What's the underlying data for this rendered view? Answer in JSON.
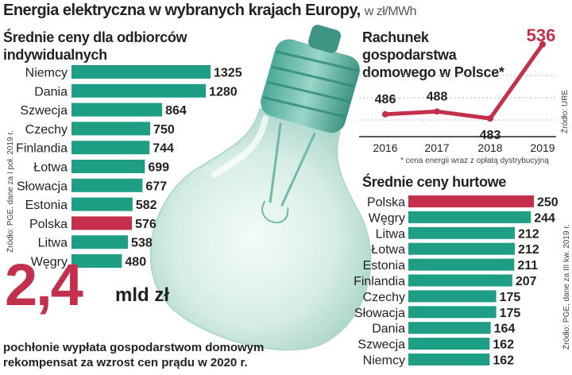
{
  "header": {
    "title": "Energia elektryczna w wybranych krajach Europy,",
    "unit": "w zł/MWh"
  },
  "colors": {
    "teal": "#1f9e86",
    "red": "#c4304b",
    "grid": "#bbbbbb"
  },
  "source_left": "Źródło: PGE, dane za I poł. 2019 r.",
  "source_line": "Źródło: URE",
  "source_right": "Źródło: PGE, dane za III kw. 2019 r.",
  "callout": {
    "number": "2,4",
    "unit": "mld zł",
    "text": "pochłonie wypłata gospodarstwom domowym rekompensat za wzrost cen prądu w 2020 r."
  },
  "chart_data": [
    {
      "type": "bar",
      "orientation": "horizontal",
      "title": "Średnie ceny dla odbiorców indywidualnych",
      "categories": [
        "Niemcy",
        "Dania",
        "Szwecja",
        "Czechy",
        "Finlandia",
        "Łotwa",
        "Słowacja",
        "Estonia",
        "Polska",
        "Litwa",
        "Węgry"
      ],
      "values": [
        1325,
        1280,
        864,
        750,
        744,
        699,
        677,
        582,
        576,
        538,
        480
      ],
      "labels": [
        "1325",
        "1280",
        "864",
        "750",
        "744",
        "699",
        "677",
        "582",
        "576",
        "538",
        "480"
      ],
      "highlight": "Polska"
    },
    {
      "type": "line",
      "title": "Rachunek gospodarstwa domowego w Polsce*",
      "x": [
        "2016",
        "2017",
        "2018",
        "2019"
      ],
      "values": [
        486,
        488,
        483,
        536
      ],
      "labels": [
        "486",
        "488",
        "483",
        "536"
      ],
      "footnote": "* cena energii wraz z opłatą dystrybucyjną"
    },
    {
      "type": "bar",
      "orientation": "horizontal",
      "title": "Średnie ceny hurtowe",
      "categories": [
        "Polska",
        "Węgry",
        "Litwa",
        "Łotwa",
        "Estonia",
        "Finlandia",
        "Czechy",
        "Słowacja",
        "Dania",
        "Szwecja",
        "Niemcy"
      ],
      "values": [
        250,
        244,
        212,
        212,
        211,
        207,
        175,
        175,
        164,
        162,
        162
      ],
      "labels": [
        "250",
        "244",
        "212",
        "212",
        "211",
        "207",
        "175",
        "175",
        "164",
        "162",
        "162"
      ],
      "highlight": "Polska"
    }
  ]
}
